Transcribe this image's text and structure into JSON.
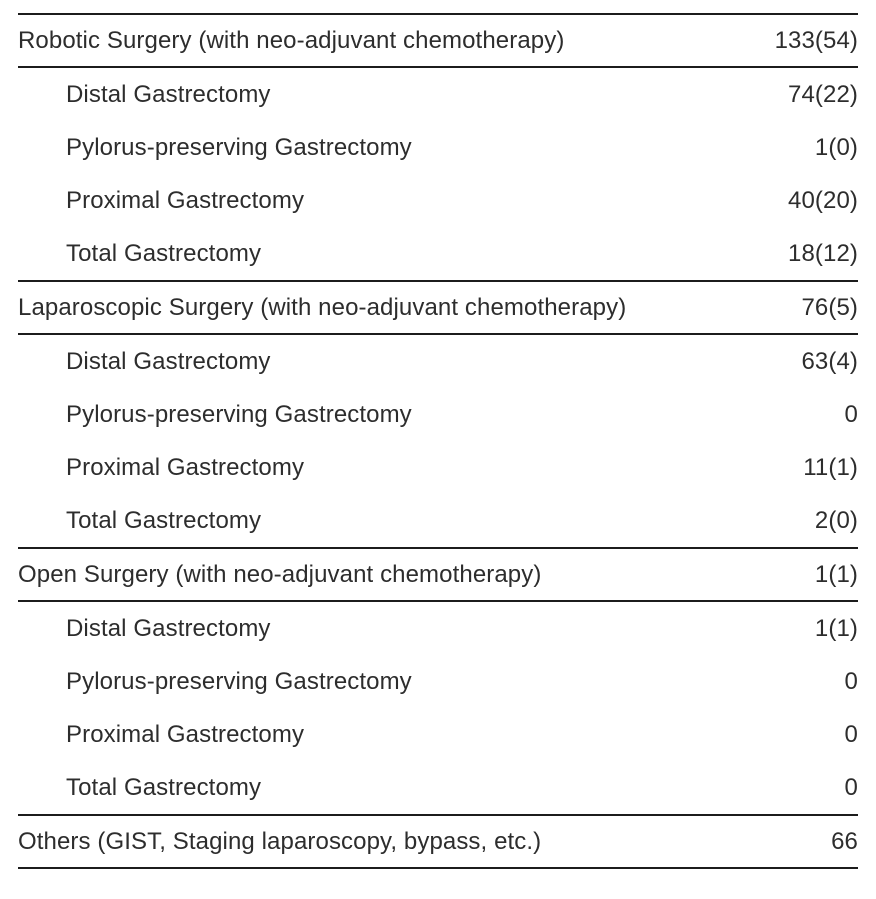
{
  "table": {
    "sections": [
      {
        "header": {
          "label": "Robotic Surgery (with neo-adjuvant chemotherapy)",
          "value": "133(54)"
        },
        "rows": [
          {
            "label": "Distal Gastrectomy",
            "value": "74(22)"
          },
          {
            "label": "Pylorus-preserving Gastrectomy",
            "value": "1(0)"
          },
          {
            "label": "Proximal Gastrectomy",
            "value": "40(20)"
          },
          {
            "label": "Total Gastrectomy",
            "value": "18(12)"
          }
        ]
      },
      {
        "header": {
          "label": "Laparoscopic Surgery (with neo-adjuvant chemotherapy)",
          "value": "76(5)"
        },
        "rows": [
          {
            "label": "Distal Gastrectomy",
            "value": "63(4)"
          },
          {
            "label": "Pylorus-preserving Gastrectomy",
            "value": "0"
          },
          {
            "label": "Proximal Gastrectomy",
            "value": "11(1)"
          },
          {
            "label": "Total Gastrectomy",
            "value": "2(0)"
          }
        ]
      },
      {
        "header": {
          "label": "Open Surgery (with neo-adjuvant chemotherapy)",
          "value": "1(1)"
        },
        "rows": [
          {
            "label": "Distal Gastrectomy",
            "value": "1(1)"
          },
          {
            "label": "Pylorus-preserving Gastrectomy",
            "value": "0"
          },
          {
            "label": "Proximal Gastrectomy",
            "value": "0"
          },
          {
            "label": "Total Gastrectomy",
            "value": "0"
          }
        ]
      },
      {
        "header": {
          "label": "Others (GIST, Staging laparoscopy, bypass, etc.)",
          "value": "66"
        },
        "rows": []
      }
    ]
  },
  "colors": {
    "text": "#2d2d2d",
    "rule": "#1c1c1c",
    "background": "#ffffff"
  }
}
